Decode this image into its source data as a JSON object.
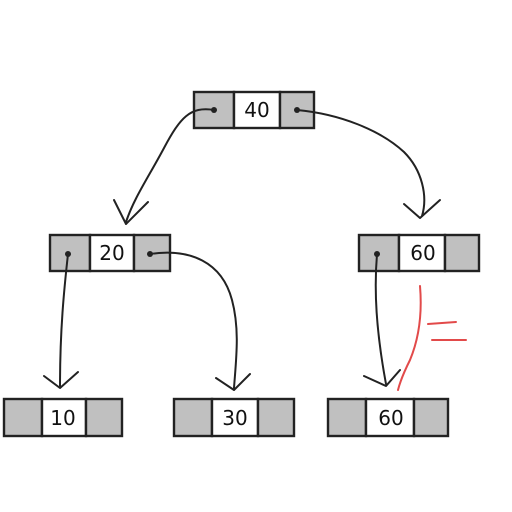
{
  "nodes": {
    "root": {
      "value": "40"
    },
    "left": {
      "value": "20"
    },
    "right": {
      "value": "60"
    },
    "left_left": {
      "value": "10"
    },
    "left_right": {
      "value": "30"
    },
    "right_left": {
      "value": "60"
    }
  },
  "colors": {
    "pointer_cell": "#c0c0c0",
    "value_cell": "#ffffff",
    "outline": "#222222",
    "annotation": "#e24a4a"
  }
}
